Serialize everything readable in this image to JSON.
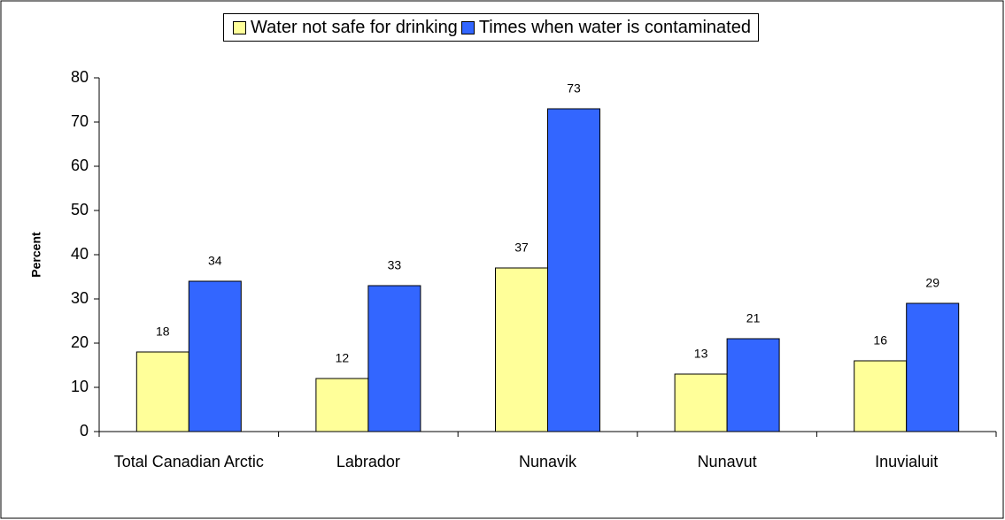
{
  "chart_data": {
    "type": "bar",
    "y_label": "Percent",
    "categories": [
      "Total Canadian Arctic",
      "Labrador",
      "Nunavik",
      "Nunavut",
      "Inuvialuit"
    ],
    "series": [
      {
        "name": "Water not safe for drinking",
        "color": "#ffff99",
        "values": [
          18,
          12,
          37,
          13,
          16
        ]
      },
      {
        "name": "Times when water is contaminated",
        "color": "#3366ff",
        "values": [
          34,
          33,
          73,
          21,
          29
        ]
      }
    ],
    "ylim": [
      0,
      80
    ],
    "yticks": [
      0,
      10,
      20,
      30,
      40,
      50,
      60,
      70,
      80
    ],
    "legend": "top"
  }
}
